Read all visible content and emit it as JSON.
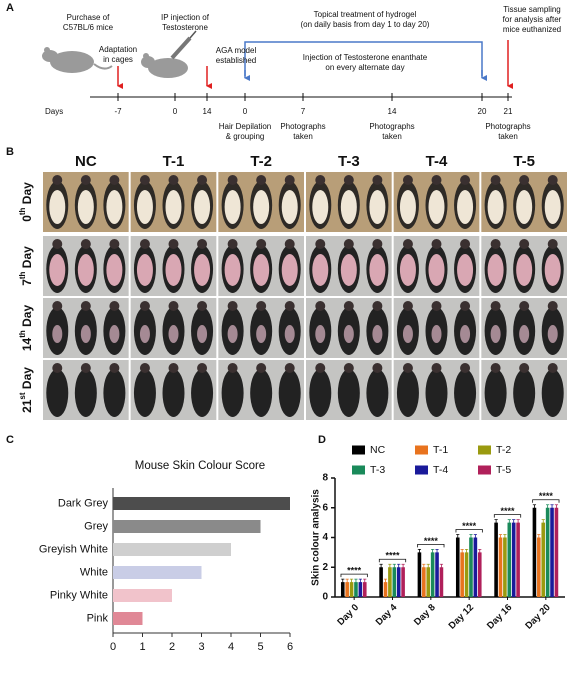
{
  "timeline": {
    "label": "A",
    "days_label": "Days",
    "ticks": [
      "-7",
      "0",
      "14",
      "0",
      "7",
      "14",
      "20",
      "21"
    ],
    "above": [
      [
        "Purchase of",
        "C57BL/6 mice"
      ],
      [
        "Adaptation",
        "in cages"
      ],
      [
        "IP injection of",
        "Testosterone"
      ],
      [
        "AGA model",
        "established"
      ],
      [
        "Topical treatment of hydrogel",
        "(on daily basis from day 1 to day 20)"
      ],
      [
        "Injection of Testosterone enanthate",
        "on every alternate day"
      ],
      [
        "Tissue sampling",
        "for analysis after",
        "mice euthanized"
      ]
    ],
    "below": [
      [
        "Hair Depilation",
        "& grouping"
      ],
      [
        "Photographs",
        "taken"
      ],
      [
        "Photographs",
        "taken"
      ],
      [
        "Photographs",
        "taken"
      ]
    ]
  },
  "photos": {
    "label": "B",
    "groups": [
      "NC",
      "T-1",
      "T-2",
      "T-3",
      "T-4",
      "T-5"
    ],
    "days": [
      {
        "n": "0",
        "sup": "th",
        "word": "Day"
      },
      {
        "n": "7",
        "sup": "th",
        "word": "Day"
      },
      {
        "n": "14",
        "sup": "th",
        "word": "Day"
      },
      {
        "n": "21",
        "sup": "st",
        "word": "Day"
      }
    ]
  },
  "chart_data": [
    {
      "type": "hbar",
      "panel": "C",
      "title": "Mouse Skin Colour Score",
      "categories": [
        "Dark Grey",
        "Grey",
        "Greyish White",
        "White",
        "Pinky White",
        "Pink"
      ],
      "values": [
        6,
        5,
        4,
        3,
        2,
        1
      ],
      "colors": [
        "#4d4d4d",
        "#8a8a8a",
        "#cfcfcf",
        "#c9cde6",
        "#f1c3cb",
        "#e08896"
      ],
      "xlim": [
        0,
        6
      ],
      "xticks": [
        0,
        1,
        2,
        3,
        4,
        5,
        6
      ]
    },
    {
      "type": "grouped_bar",
      "panel": "D",
      "ylabel": "Skin colour analysis",
      "categories": [
        "Day 0",
        "Day 4",
        "Day 8",
        "Day 12",
        "Day 16",
        "Day 20"
      ],
      "series": [
        {
          "name": "NC",
          "color": "#000000",
          "values": [
            1,
            2,
            3,
            4,
            5,
            6
          ],
          "errors": [
            0.2,
            0.2,
            0.2,
            0.2,
            0.2,
            0.2
          ]
        },
        {
          "name": "T-1",
          "color": "#e8731e",
          "values": [
            1,
            1,
            2,
            3,
            4,
            4
          ],
          "errors": [
            0.2,
            0.2,
            0.2,
            0.2,
            0.2,
            0.2
          ]
        },
        {
          "name": "T-2",
          "color": "#9a9a10",
          "values": [
            1,
            2,
            2,
            3,
            4,
            5
          ],
          "errors": [
            0.2,
            0.2,
            0.2,
            0.2,
            0.2,
            0.2
          ]
        },
        {
          "name": "T-3",
          "color": "#1a8a5a",
          "values": [
            1,
            2,
            3,
            4,
            5,
            6
          ],
          "errors": [
            0.2,
            0.2,
            0.2,
            0.2,
            0.2,
            0.2
          ]
        },
        {
          "name": "T-4",
          "color": "#1a1a9a",
          "values": [
            1,
            2,
            3,
            4,
            5,
            6
          ],
          "errors": [
            0.2,
            0.2,
            0.2,
            0.2,
            0.2,
            0.2
          ]
        },
        {
          "name": "T-5",
          "color": "#b0205a",
          "values": [
            1,
            2,
            2,
            3,
            5,
            6
          ],
          "errors": [
            0.2,
            0.2,
            0.2,
            0.2,
            0.2,
            0.2
          ]
        }
      ],
      "significance": [
        "****",
        "****",
        "****",
        "****",
        "****",
        "****"
      ],
      "ylim": [
        0,
        8
      ],
      "yticks": [
        0,
        2,
        4,
        6,
        8
      ]
    }
  ]
}
